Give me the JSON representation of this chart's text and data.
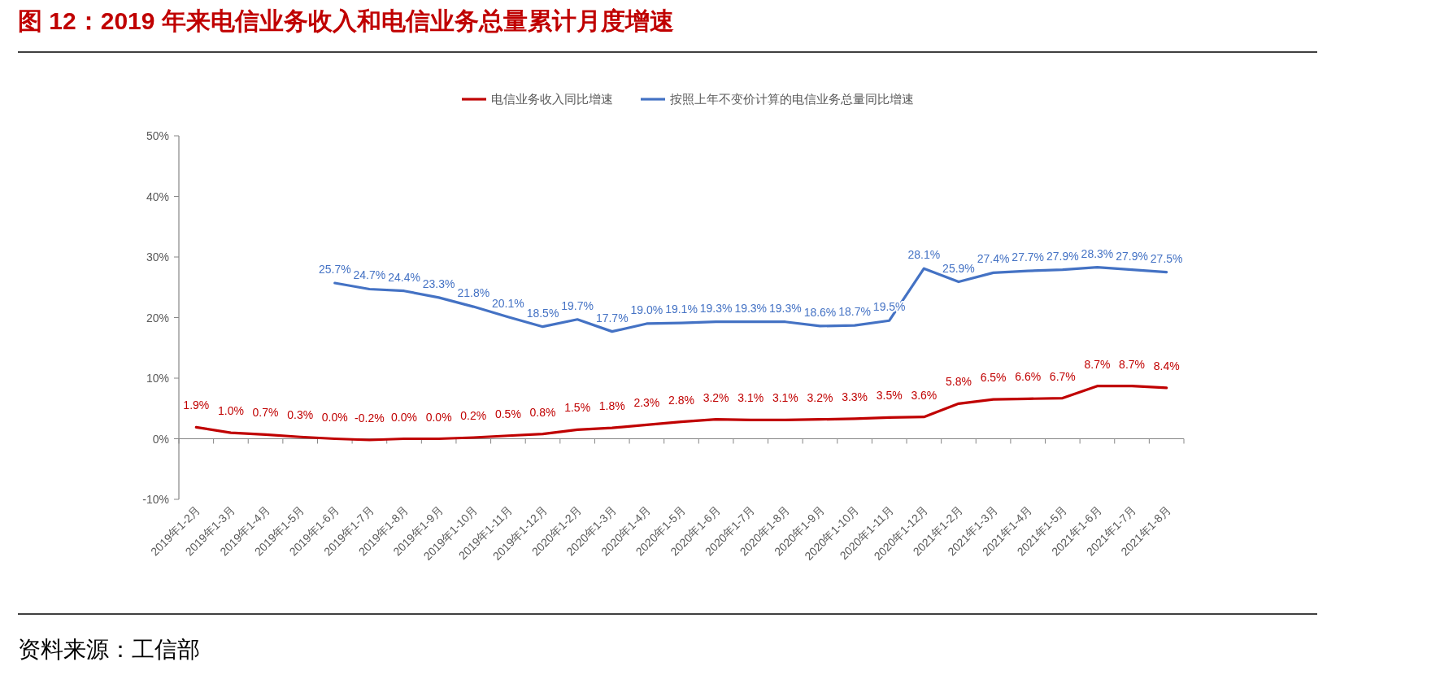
{
  "chart_data": {
    "type": "line",
    "title": "图 12：2019 年来电信业务收入和电信业务总量累计月度增速",
    "categories": [
      "2019年1-2月",
      "2019年1-3月",
      "2019年1-4月",
      "2019年1-5月",
      "2019年1-6月",
      "2019年1-7月",
      "2019年1-8月",
      "2019年1-9月",
      "2019年1-10月",
      "2019年1-11月",
      "2019年1-12月",
      "2020年1-2月",
      "2020年1-3月",
      "2020年1-4月",
      "2020年1-5月",
      "2020年1-6月",
      "2020年1-7月",
      "2020年1-8月",
      "2020年1-9月",
      "2020年1-10月",
      "2020年1-11月",
      "2020年1-12月",
      "2021年1-2月",
      "2021年1-3月",
      "2021年1-4月",
      "2021年1-5月",
      "2021年1-6月",
      "2021年1-7月",
      "2021年1-8月"
    ],
    "series": [
      {
        "name": "电信业务收入同比增速",
        "color": "#c00000",
        "values": [
          1.9,
          1.0,
          0.7,
          0.3,
          0.0,
          -0.2,
          0.0,
          0.0,
          0.2,
          0.5,
          0.8,
          1.5,
          1.8,
          2.3,
          2.8,
          3.2,
          3.1,
          3.1,
          3.2,
          3.3,
          3.5,
          3.6,
          5.8,
          6.5,
          6.6,
          6.7,
          8.7,
          8.7,
          8.4
        ],
        "value_labels": [
          "1.9%",
          "1.0%",
          "0.7%",
          "0.3%",
          "0.0%",
          "-0.2%",
          "0.0%",
          "0.0%",
          "0.2%",
          "0.5%",
          "0.8%",
          "1.5%",
          "1.8%",
          "2.3%",
          "2.8%",
          "3.2%",
          "3.1%",
          "3.1%",
          "3.2%",
          "3.3%",
          "3.5%",
          "3.6%",
          "5.8%",
          "6.5%",
          "6.6%",
          "6.7%",
          "8.7%",
          "8.7%",
          "8.4%"
        ]
      },
      {
        "name": "按照上年不变价计算的电信业务总量同比增速",
        "color": "#4472c4",
        "values": [
          null,
          null,
          null,
          null,
          25.7,
          24.7,
          24.4,
          23.3,
          21.8,
          20.1,
          18.5,
          19.7,
          17.7,
          19.0,
          19.1,
          19.3,
          19.3,
          19.3,
          18.6,
          18.7,
          19.5,
          28.1,
          25.9,
          27.4,
          27.7,
          27.9,
          28.3,
          27.9,
          27.5
        ],
        "value_labels": [
          null,
          null,
          null,
          null,
          "25.7%",
          "24.7%",
          "24.4%",
          "23.3%",
          "21.8%",
          "20.1%",
          "18.5%",
          "19.7%",
          "17.7%",
          "19.0%",
          "19.1%",
          "19.3%",
          "19.3%",
          "19.3%",
          "18.6%",
          "18.7%",
          "19.5%",
          "28.1%",
          "25.9%",
          "27.4%",
          "27.7%",
          "27.9%",
          "28.3%",
          "27.9%",
          "27.5%"
        ]
      }
    ],
    "ylim": [
      -10,
      50
    ],
    "yticks": [
      {
        "value": -10,
        "label": "-10%"
      },
      {
        "value": 0,
        "label": "0%"
      },
      {
        "value": 10,
        "label": "10%"
      },
      {
        "value": 20,
        "label": "20%"
      },
      {
        "value": 30,
        "label": "30%"
      },
      {
        "value": 40,
        "label": "40%"
      },
      {
        "value": 50,
        "label": "50%"
      }
    ],
    "legend": "top",
    "marker": "none",
    "line_style": "solid",
    "annotations": [
      "资料来源：工信部"
    ]
  }
}
